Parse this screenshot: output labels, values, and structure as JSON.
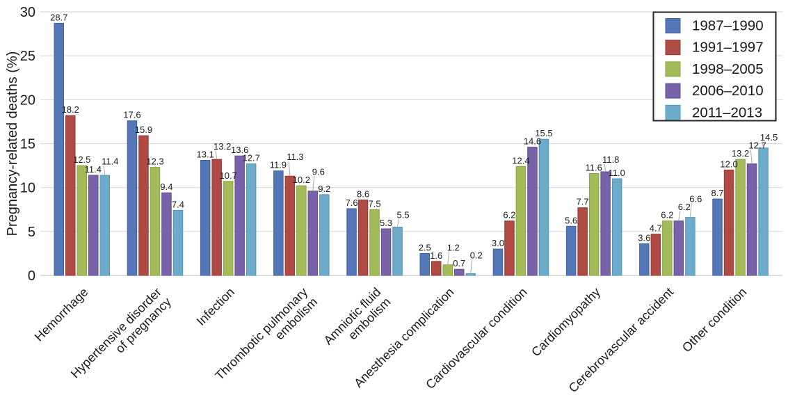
{
  "chart_data": {
    "type": "bar",
    "title": "",
    "xlabel": "",
    "ylabel": "Pregnancy-related deaths (%)",
    "ylim": [
      0,
      30
    ],
    "yticks": [
      0,
      5,
      10,
      15,
      20,
      25,
      30
    ],
    "grid": "horizontal",
    "grid_color": "#d9d9d9",
    "axis_line_color": "#c9c9c9",
    "text_color": "#1a1a1a",
    "leader_line_color": "#a6a6a6",
    "legend_position": "top-right",
    "legend_border_color": "#262626",
    "background": "#ffffff",
    "value_labels": true,
    "value_label_decimals": 1,
    "categories": [
      [
        "Hemorrhage"
      ],
      [
        "Hypertensive disorder",
        "of pregnancy"
      ],
      [
        "Infection"
      ],
      [
        "Thrombotic pulmonary",
        "embolism"
      ],
      [
        "Amniotic fluid",
        "embolism"
      ],
      [
        "Anesthesia complication"
      ],
      [
        "Cardiovascular condition"
      ],
      [
        "Cardiomyopathy"
      ],
      [
        "Cerebrovascular accident"
      ],
      [
        "Other condition"
      ]
    ],
    "series": [
      {
        "name": "1987–1990",
        "color": "#5377B7",
        "border": "#41619E",
        "values": [
          28.7,
          17.6,
          13.1,
          11.9,
          7.6,
          2.5,
          3.0,
          5.6,
          3.6,
          8.7
        ]
      },
      {
        "name": "1991–1997",
        "color": "#AF4A45",
        "border": "#923A36",
        "values": [
          18.2,
          15.9,
          13.2,
          11.3,
          8.6,
          1.6,
          6.2,
          7.7,
          4.7,
          12.0
        ]
      },
      {
        "name": "1998–2005",
        "color": "#A3BC59",
        "border": "#87A23F",
        "values": [
          12.5,
          12.3,
          10.7,
          10.2,
          7.5,
          1.2,
          12.4,
          11.6,
          6.2,
          13.2
        ]
      },
      {
        "name": "2006–2010",
        "color": "#7A62A8",
        "border": "#634C8E",
        "values": [
          11.4,
          9.4,
          13.6,
          9.6,
          5.3,
          0.7,
          14.6,
          11.8,
          6.2,
          12.7
        ]
      },
      {
        "name": "2011–2013",
        "color": "#6CACCA",
        "border": "#5493B5",
        "values": [
          11.4,
          7.4,
          12.7,
          9.2,
          5.5,
          0.2,
          15.5,
          11.0,
          6.6,
          14.5
        ]
      }
    ]
  }
}
